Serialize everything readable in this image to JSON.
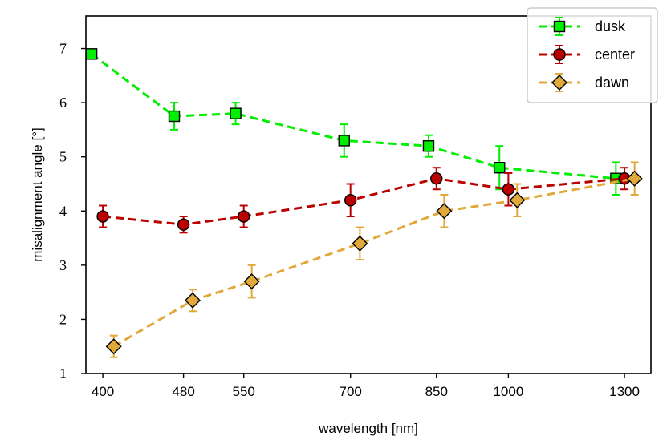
{
  "chart_data": {
    "type": "line",
    "title": "",
    "xlabel": "wavelength [nm]",
    "ylabel": "misalignment angle [°]",
    "xscale": "log",
    "xlim": [
      385,
      1380
    ],
    "ylim": [
      1,
      7.6
    ],
    "xticks": [
      400,
      480,
      550,
      700,
      850,
      1000,
      1300
    ],
    "xtick_labels": [
      "400",
      "480",
      "550",
      "700",
      "850",
      "1000",
      "1300"
    ],
    "yticks": [
      1,
      2,
      3,
      4,
      5,
      6,
      7
    ],
    "ytick_labels": [
      "1",
      "2",
      "3",
      "4",
      "5",
      "6",
      "7"
    ],
    "grid": false,
    "legend_position": "top-right",
    "series": [
      {
        "name": "dusk",
        "color": "#00ee00",
        "marker": "square",
        "x": [
          390,
          470,
          540,
          690,
          835,
          980,
          1275
        ],
        "y": [
          6.9,
          5.75,
          5.8,
          5.3,
          5.2,
          4.8,
          4.6
        ],
        "err": [
          0.0,
          0.25,
          0.2,
          0.3,
          0.2,
          0.4,
          0.3
        ]
      },
      {
        "name": "center",
        "color": "#bb0000",
        "marker": "circle",
        "x": [
          400,
          480,
          550,
          700,
          850,
          1000,
          1300
        ],
        "y": [
          3.9,
          3.75,
          3.9,
          4.2,
          4.6,
          4.4,
          4.6
        ],
        "err": [
          0.2,
          0.15,
          0.2,
          0.3,
          0.2,
          0.3,
          0.2
        ]
      },
      {
        "name": "dawn",
        "color": "#e0a93a",
        "marker": "diamond",
        "x": [
          410,
          490,
          560,
          715,
          865,
          1020,
          1330
        ],
        "y": [
          1.5,
          2.35,
          2.7,
          3.4,
          4.0,
          4.2,
          4.6
        ],
        "err": [
          0.2,
          0.2,
          0.3,
          0.3,
          0.3,
          0.3,
          0.3
        ]
      }
    ]
  }
}
